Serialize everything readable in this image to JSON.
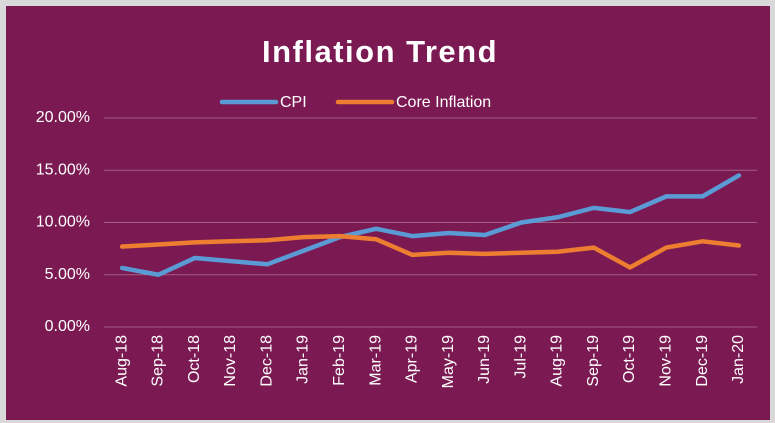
{
  "chart_data": {
    "type": "line",
    "title": "Inflation Trend",
    "categories": [
      "Aug-18",
      "Sep-18",
      "Oct-18",
      "Nov-18",
      "Dec-18",
      "Jan-19",
      "Feb-19",
      "Mar-19",
      "Apr-19",
      "May-19",
      "Jun-19",
      "Jul-19",
      "Aug-19",
      "Sep-19",
      "Oct-19",
      "Nov-19",
      "Dec-19",
      "Jan-20"
    ],
    "series": [
      {
        "name": "CPI",
        "color": "#5b9bd5",
        "values": [
          5.65,
          5.0,
          6.6,
          6.3,
          6.0,
          7.3,
          8.6,
          9.4,
          8.7,
          9.0,
          8.8,
          10.0,
          10.5,
          11.4,
          11.0,
          12.5,
          12.5,
          14.5
        ]
      },
      {
        "name": "Core Inflation",
        "color": "#ed7d31",
        "values": [
          7.7,
          7.9,
          8.1,
          8.2,
          8.3,
          8.6,
          8.7,
          8.4,
          6.9,
          7.1,
          7.0,
          7.1,
          7.2,
          7.6,
          5.7,
          7.6,
          8.2,
          7.8
        ]
      }
    ],
    "ylim": [
      0,
      20
    ],
    "yticks": [
      {
        "value": 0,
        "label": "0.00%"
      },
      {
        "value": 5,
        "label": "5.00%"
      },
      {
        "value": 10,
        "label": "10.00%"
      },
      {
        "value": 15,
        "label": "15.00%"
      },
      {
        "value": 20,
        "label": "20.00%"
      }
    ],
    "grid": true,
    "legend": "top"
  }
}
